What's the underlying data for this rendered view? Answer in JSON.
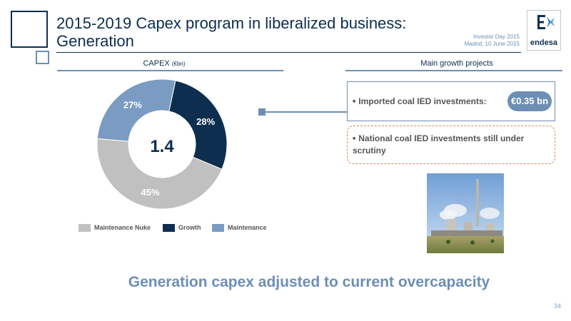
{
  "slide": {
    "title_line1": "2015-2019 Capex program in liberalized business:",
    "title_line2": "Generation",
    "event_line1": "Investor Day 2015",
    "event_line2": "Madrid, 10 June 2015",
    "logo_text": "endesa",
    "page_number": "34",
    "tagline": "Generation capex adjusted to current overcapacity"
  },
  "capex_panel": {
    "title": "CAPEX",
    "unit": "(€bn)",
    "center_value": "1.4"
  },
  "growth_panel": {
    "title": "Main growth projects",
    "item1": "Imported coal IED investments:",
    "item1_value": "€0.35 bn",
    "item2": "National coal IED investments still under scrutiny"
  },
  "colors": {
    "navy": "#0d2e4e",
    "steel_blue": "#7a9cc2",
    "grey": "#c0c0c0",
    "dashed_border": "#e08a5a"
  },
  "chart_data": {
    "type": "pie",
    "title": "CAPEX (€bn)",
    "total": 1.4,
    "slices": [
      {
        "name": "Growth",
        "value": 28,
        "label": "28%",
        "color": "#0d2e4e"
      },
      {
        "name": "Maintenance Nuke",
        "value": 45,
        "label": "45%",
        "color": "#c0c0c0"
      },
      {
        "name": "Maintenance",
        "value": 27,
        "label": "27%",
        "color": "#7a9cc2"
      }
    ],
    "legend": [
      {
        "name": "Maintenance Nuke",
        "color": "#c0c0c0"
      },
      {
        "name": "Growth",
        "color": "#0d2e4e"
      },
      {
        "name": "Maintenance",
        "color": "#7a9cc2"
      }
    ],
    "legend_position": "bottom"
  }
}
